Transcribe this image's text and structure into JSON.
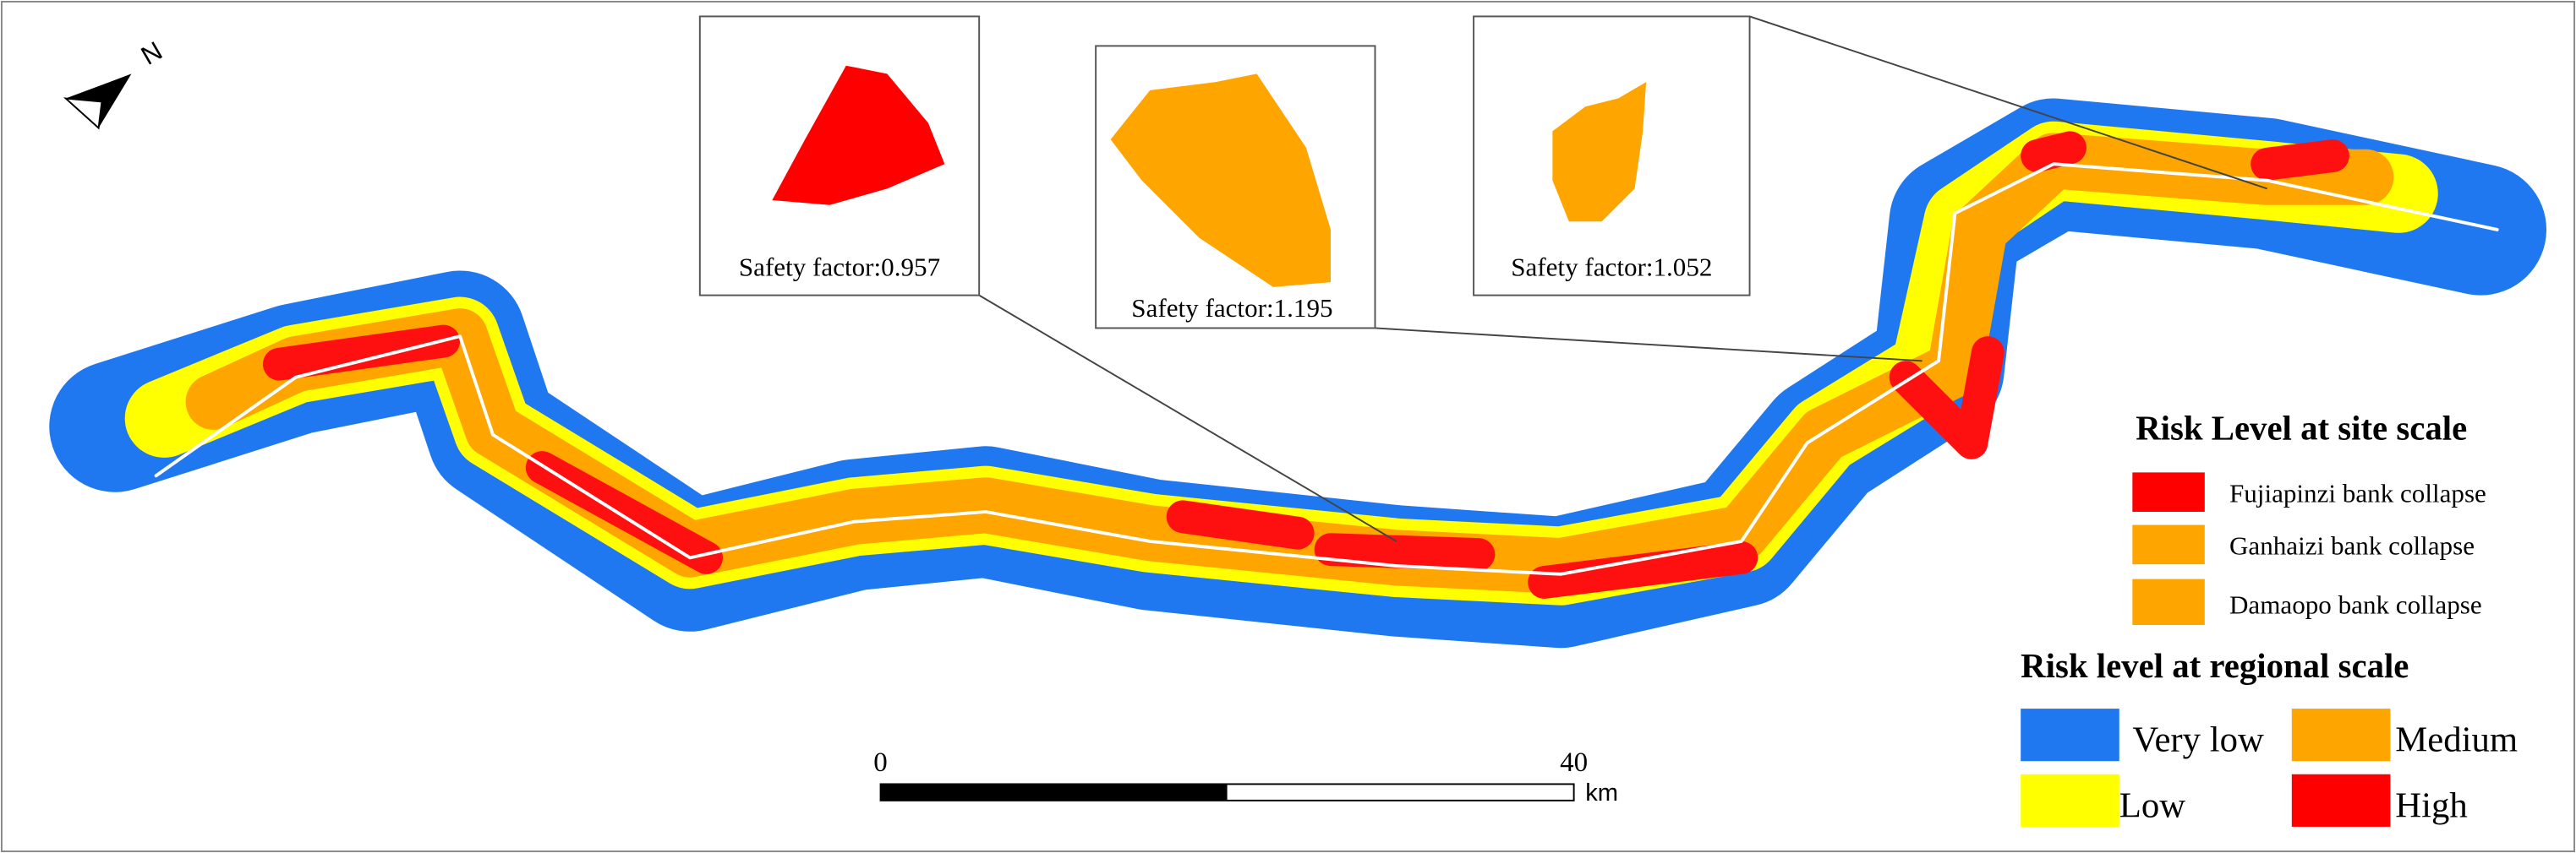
{
  "north_arrow": {
    "label": "N"
  },
  "insets": [
    {
      "label": "Safety factor:0.957"
    },
    {
      "label": "Safety factor:1.195"
    },
    {
      "label": "Safety factor:1.052"
    }
  ],
  "site_legend": {
    "title": "Risk Level at site scale",
    "items": [
      "Fujiapinzi bank collapse",
      "Ganhaizi bank collapse",
      "Damaopo bank collapse"
    ]
  },
  "regional_legend": {
    "title": "Risk level at regional scale",
    "items": [
      "Very low",
      "Low",
      "Medium",
      "High"
    ]
  },
  "scale_bar": {
    "start": "0",
    "end": "40",
    "unit": "km"
  }
}
